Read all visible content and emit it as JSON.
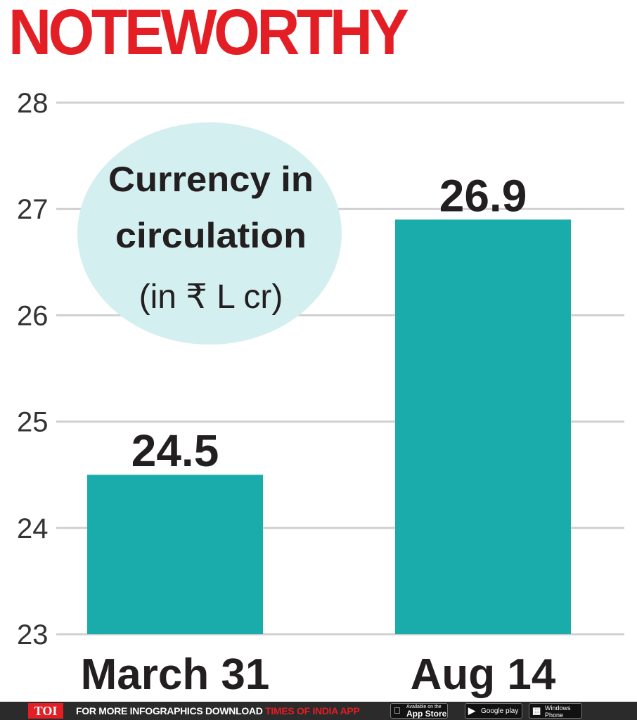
{
  "headline": "NOTEWORTHY",
  "chart_data": {
    "type": "bar",
    "title": "Currency in circulation",
    "title_line1": "Currency in",
    "title_line2": "circulation",
    "unit": "(in ₹ L cr)",
    "categories": [
      "March 31",
      "Aug 14"
    ],
    "values": [
      24.5,
      26.9
    ],
    "value_labels": [
      "24.5",
      "26.9"
    ],
    "ylim": [
      23,
      28
    ],
    "yticks": [
      23,
      24,
      25,
      26,
      27,
      28
    ],
    "grid": true,
    "bar_color": "#1aacaa",
    "bubble_color": "#d4efef"
  },
  "footer": {
    "logo": "TOI",
    "promo_text": "FOR MORE  INFOGRAPHICS DOWNLOAD",
    "promo_brand": "TIMES OF INDIA APP",
    "stores": [
      {
        "small": "Available on the",
        "big": "App Store",
        "icon": "apple-icon"
      },
      {
        "small": "",
        "big": "Google play",
        "icon": "play-icon"
      },
      {
        "small": "Windows",
        "big": "Phone",
        "icon": "windows-icon"
      }
    ]
  }
}
